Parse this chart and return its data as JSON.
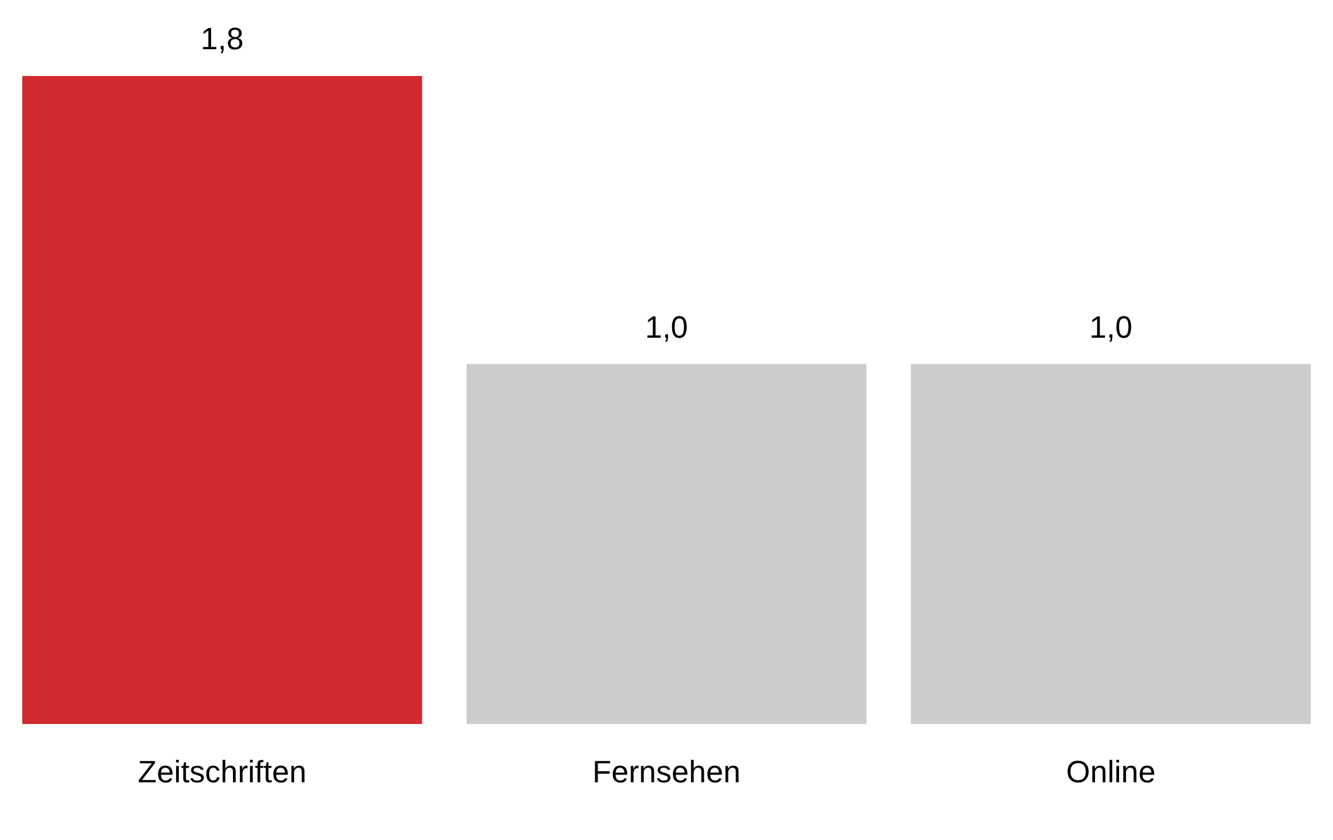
{
  "chart_data": {
    "type": "bar",
    "categories": [
      "Zeitschriften",
      "Fernsehen",
      "Online"
    ],
    "values": [
      1.8,
      1.0,
      1.0
    ],
    "colors": [
      "#d12a2f",
      "#cccccc",
      "#cccccc"
    ],
    "value_labels": [
      "1,8",
      "1,0",
      "1,0"
    ],
    "ylim": [
      0,
      1.8
    ],
    "grid": false,
    "legend": false,
    "tick_labels": "x"
  }
}
